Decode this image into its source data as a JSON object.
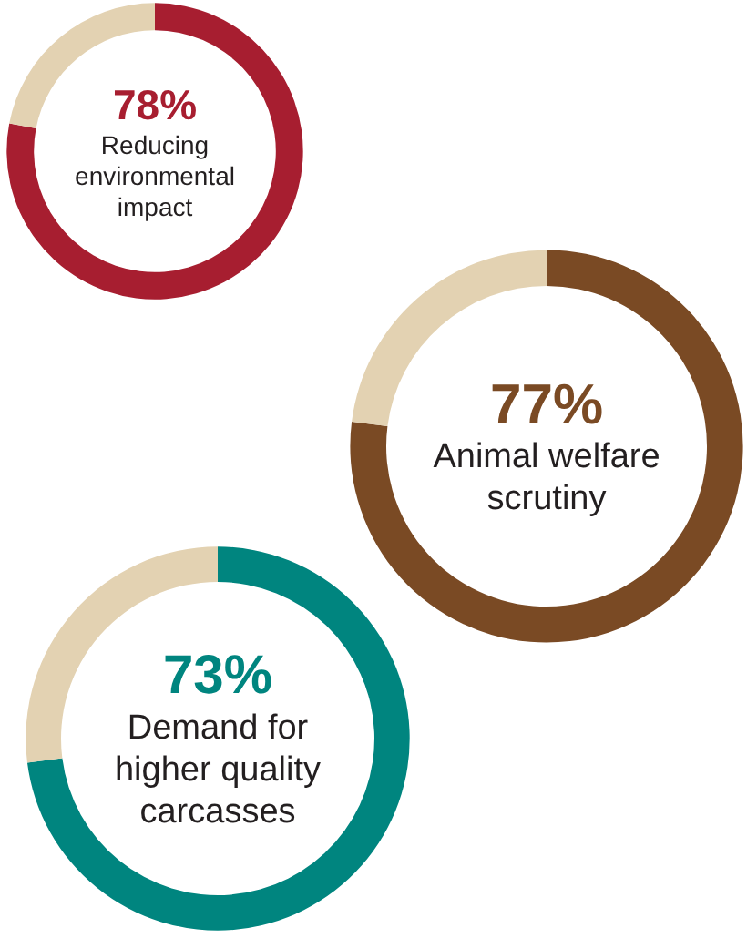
{
  "chart_data": [
    {
      "type": "donut",
      "categories": [
        "Reducing environmental impact",
        null
      ],
      "values": [
        78,
        22
      ],
      "colors": [
        "#a71e30",
        "#e3d2b2"
      ],
      "value_labels": [
        "78%",
        null
      ]
    },
    {
      "type": "donut",
      "categories": [
        "Animal welfare scrutiny",
        null
      ],
      "values": [
        77,
        23
      ],
      "colors": [
        "#7a4a24",
        "#e3d2b2"
      ],
      "value_labels": [
        "77%",
        null
      ]
    },
    {
      "type": "donut",
      "categories": [
        "Demand for higher quality carcasses",
        null
      ],
      "values": [
        73,
        27
      ],
      "colors": [
        "#00857f",
        "#e3d2b2"
      ],
      "value_labels": [
        "73%",
        null
      ]
    }
  ]
}
